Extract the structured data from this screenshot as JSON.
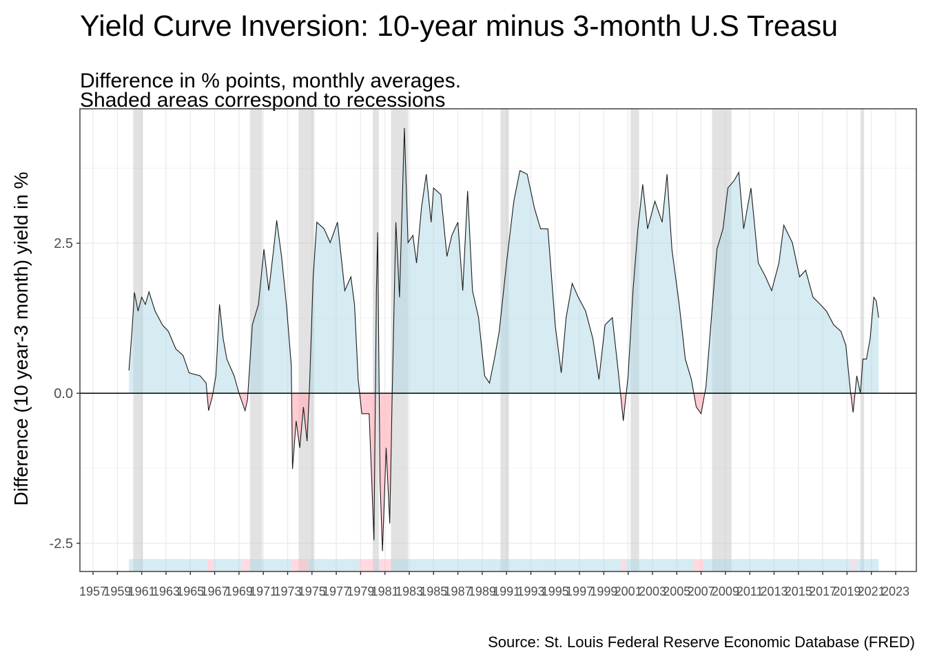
{
  "chart_data": {
    "type": "area-line",
    "title": "Yield Curve Inversion: 10-year minus 3-month U.S Treasu",
    "subtitle": [
      "Difference in % points, monthly averages.",
      "Shaded areas correspond to recessions"
    ],
    "y_label": "Difference (10 year-3 month) yield in %",
    "caption": "Source: St. Louis Federal Reserve Economic Database (FRED)",
    "x": [
      1959.95,
      1960.2,
      1960.4,
      1960.7,
      1961.0,
      1961.3,
      1961.6,
      1962.1,
      1962.7,
      1963.2,
      1963.8,
      1964.4,
      1964.9,
      1965.8,
      1966.3,
      1966.5,
      1966.8,
      1967.1,
      1967.4,
      1967.7,
      1968.0,
      1968.6,
      1969.0,
      1969.5,
      1969.7,
      1970.1,
      1970.6,
      1971.05,
      1971.45,
      1971.85,
      1972.1,
      1972.5,
      1972.9,
      1973.3,
      1973.4,
      1973.7,
      1974.0,
      1974.3,
      1974.6,
      1974.8,
      1975.1,
      1975.4,
      1976.0,
      1976.5,
      1977.1,
      1977.7,
      1978.2,
      1978.5,
      1978.8,
      1979.1,
      1979.7,
      1979.9,
      1980.1,
      1980.3,
      1980.4,
      1980.6,
      1980.8,
      1981.1,
      1981.4,
      1981.6,
      1981.9,
      1982.2,
      1982.6,
      1982.9,
      1983.3,
      1983.6,
      1984.0,
      1984.4,
      1984.8,
      1985.0,
      1985.6,
      1986.1,
      1986.5,
      1987.0,
      1987.4,
      1987.8,
      1988.2,
      1988.7,
      1989.2,
      1989.6,
      1990.0,
      1990.4,
      1991.0,
      1991.6,
      1992.1,
      1992.7,
      1993.3,
      1993.8,
      1994.4,
      1995.0,
      1995.5,
      1995.9,
      1996.4,
      1996.9,
      1997.5,
      1998.1,
      1998.6,
      1999.1,
      1999.7,
      2000.2,
      2000.6,
      2001.0,
      2001.4,
      2001.8,
      2002.2,
      2002.6,
      2003.2,
      2003.8,
      2004.2,
      2004.6,
      2005.2,
      2005.7,
      2006.2,
      2006.6,
      2007.0,
      2007.4,
      2007.8,
      2008.3,
      2008.8,
      2009.2,
      2009.7,
      2010.1,
      2010.5,
      2011.1,
      2011.7,
      2012.3,
      2012.8,
      2013.4,
      2013.8,
      2014.5,
      2015.1,
      2015.6,
      2016.2,
      2016.8,
      2017.3,
      2017.9,
      2018.5,
      2018.9,
      2019.3,
      2019.5,
      2019.8,
      2020.1,
      2020.3,
      2020.6,
      2020.9,
      2021.2,
      2021.4,
      2021.6
    ],
    "values": [
      0.38,
      1.03,
      1.68,
      1.37,
      1.6,
      1.48,
      1.69,
      1.37,
      1.14,
      1.03,
      0.74,
      0.63,
      0.34,
      0.29,
      0.17,
      -0.29,
      -0.06,
      0.29,
      1.48,
      0.91,
      0.57,
      0.29,
      0,
      -0.29,
      -0.11,
      1.14,
      1.48,
      2.4,
      1.71,
      2.4,
      2.88,
      2.28,
      1.48,
      0.46,
      -1.26,
      -0.46,
      -0.91,
      -0.23,
      -0.8,
      0.11,
      1.94,
      2.85,
      2.74,
      2.51,
      2.85,
      1.71,
      1.94,
      1.48,
      0.23,
      -0.34,
      -0.34,
      -1.37,
      -2.45,
      1.71,
      2.68,
      -1.48,
      -2.63,
      -0.91,
      -2.17,
      0,
      2.85,
      1.6,
      4.42,
      2.51,
      2.63,
      2.17,
      3.08,
      3.65,
      2.85,
      3.42,
      3.31,
      2.28,
      2.63,
      2.85,
      1.71,
      3.37,
      1.71,
      1.26,
      0.29,
      0.17,
      0.57,
      1.03,
      2.17,
      3.2,
      3.71,
      3.65,
      3.08,
      2.74,
      2.74,
      1.14,
      0.34,
      1.26,
      1.83,
      1.6,
      1.37,
      0.91,
      0.23,
      1.14,
      1.26,
      0.34,
      -0.46,
      0.29,
      1.71,
      2.74,
      3.48,
      2.74,
      3.2,
      2.85,
      3.65,
      2.4,
      1.48,
      0.57,
      0.23,
      -0.23,
      -0.34,
      0.11,
      1.14,
      2.4,
      2.74,
      3.42,
      3.54,
      3.68,
      2.74,
      3.42,
      2.17,
      1.94,
      1.71,
      2.17,
      2.8,
      2.51,
      1.94,
      2.05,
      1.6,
      1.48,
      1.37,
      1.14,
      1.03,
      0.8,
      0,
      -0.32,
      0.29,
      0,
      0.57,
      0.57,
      0.91,
      1.6,
      1.54,
      1.26
    ],
    "recessions": [
      [
        1960.3,
        1961.1
      ],
      [
        1969.9,
        1970.9
      ],
      [
        1973.9,
        1975.2
      ],
      [
        1980.0,
        1980.5
      ],
      [
        1981.5,
        1982.9
      ],
      [
        1990.5,
        1991.2
      ],
      [
        2001.2,
        2001.9
      ],
      [
        2007.9,
        2009.5
      ],
      [
        2020.1,
        2020.4
      ]
    ],
    "xlim": [
      1955.92,
      2024.7
    ],
    "ylim": [
      -2.97,
      4.74
    ],
    "xticks": [
      1957,
      1959,
      1961,
      1963,
      1965,
      1967,
      1969,
      1971,
      1973,
      1975,
      1977,
      1979,
      1981,
      1983,
      1985,
      1987,
      1989,
      1991,
      1993,
      1995,
      1997,
      1999,
      2001,
      2003,
      2005,
      2007,
      2009,
      2011,
      2013,
      2015,
      2017,
      2019,
      2021,
      2023
    ],
    "yticks": [
      -2.5,
      {
        "value": 0,
        "label": "0.0"
      },
      2.5
    ],
    "yminorticks": [
      -1.25,
      1.25,
      3.75
    ],
    "reference_line": 0,
    "grid": true,
    "line_color": "#1a1a1a",
    "positive_color": "#add8e6",
    "negative_color": "#ffb6c1",
    "recession_color": "#bebebe"
  }
}
